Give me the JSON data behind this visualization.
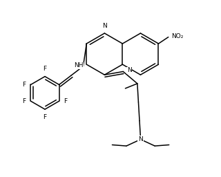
{
  "background": "#ffffff",
  "bond_color": "#000000",
  "lw": 1.1,
  "figsize": [
    3.2,
    2.56
  ],
  "dpi": 100,
  "xlim": [
    0,
    10
  ],
  "ylim": [
    0,
    8
  ]
}
